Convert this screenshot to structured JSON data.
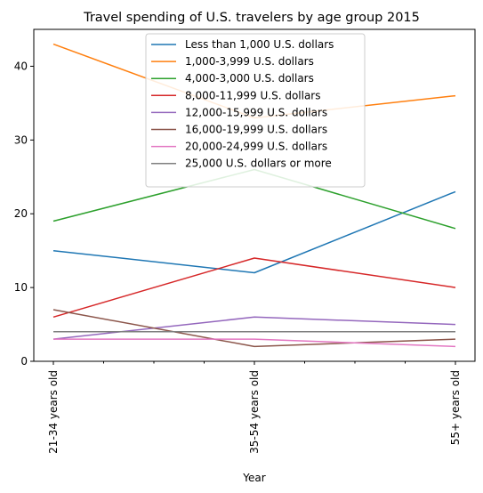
{
  "chart_data": {
    "type": "line",
    "title": "Travel spending of U.S. travelers by age group 2015",
    "xlabel": "Year",
    "ylabel": "",
    "categories": [
      "21-34 years old",
      "35-54 years old",
      "55+ years old"
    ],
    "ylim": [
      0,
      45
    ],
    "yticks": [
      0,
      10,
      20,
      30,
      40
    ],
    "grid": false,
    "legend_position": "top-center",
    "series": [
      {
        "name": "Less than 1,000 U.S. dollars",
        "color": "#1f77b4",
        "values": [
          15,
          12,
          23
        ]
      },
      {
        "name": "1,000-3,999 U.S. dollars",
        "color": "#ff7f0e",
        "values": [
          43,
          33,
          36
        ]
      },
      {
        "name": "4,000-3,000 U.S. dollars",
        "color": "#2ca02c",
        "values": [
          19,
          26,
          18
        ]
      },
      {
        "name": "8,000-11,999 U.S. dollars",
        "color": "#d62728",
        "values": [
          6,
          14,
          10
        ]
      },
      {
        "name": "12,000-15,999 U.S. dollars",
        "color": "#9467bd",
        "values": [
          3,
          6,
          5
        ]
      },
      {
        "name": "16,000-19,999 U.S. dollars",
        "color": "#8c564b",
        "values": [
          7,
          2,
          3
        ]
      },
      {
        "name": "20,000-24,999 U.S. dollars",
        "color": "#e377c2",
        "values": [
          3,
          3,
          2
        ]
      },
      {
        "name": "25,000 U.S. dollars or more",
        "color": "#7f7f7f",
        "values": [
          4,
          4,
          4
        ]
      }
    ]
  }
}
